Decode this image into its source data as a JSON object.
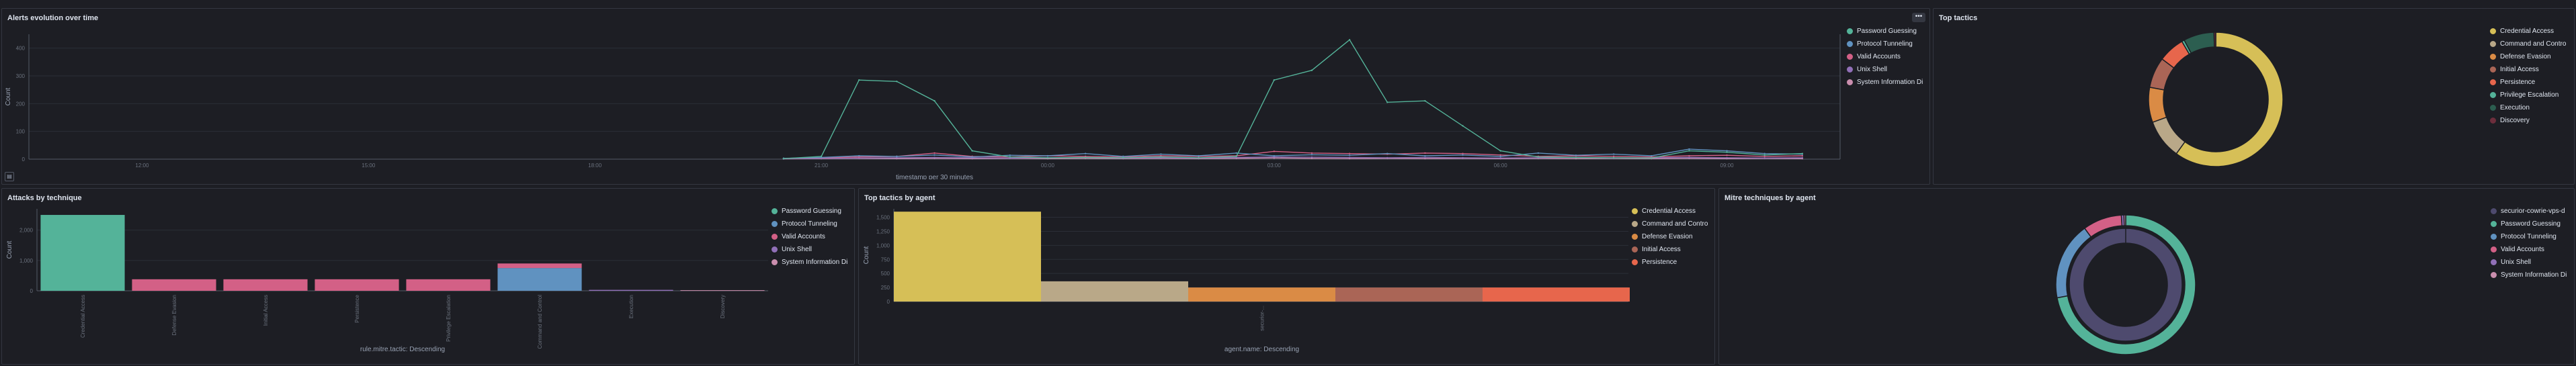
{
  "panels": {
    "alerts_evolution": {
      "title": "Alerts evolution over time",
      "menu_icon": "ellipsis-icon",
      "legend": [
        {
          "label": "Password Guessing",
          "color": "#54b399"
        },
        {
          "label": "Protocol Tunneling",
          "color": "#6092c0"
        },
        {
          "label": "Valid Accounts",
          "color": "#d36086"
        },
        {
          "label": "Unix Shell",
          "color": "#9170b8"
        },
        {
          "label": "System Information Di",
          "color": "#ca8eae"
        }
      ]
    },
    "top_tactics": {
      "title": "Top tactics",
      "legend": [
        {
          "label": "Credential Access",
          "color": "#d6bf57"
        },
        {
          "label": "Command and Contro",
          "color": "#b9a888"
        },
        {
          "label": "Defense Evasion",
          "color": "#da8b45"
        },
        {
          "label": "Initial Access",
          "color": "#aa6556"
        },
        {
          "label": "Persistence",
          "color": "#e7664c"
        },
        {
          "label": "Privilege Escalation",
          "color": "#54b399"
        },
        {
          "label": "Execution",
          "color": "#2c5e50"
        },
        {
          "label": "Discovery",
          "color": "#6d2e3c"
        }
      ]
    },
    "attacks_by_technique": {
      "title": "Attacks by technique",
      "legend": [
        {
          "label": "Password Guessing",
          "color": "#54b399"
        },
        {
          "label": "Protocol Tunneling",
          "color": "#6092c0"
        },
        {
          "label": "Valid Accounts",
          "color": "#d36086"
        },
        {
          "label": "Unix Shell",
          "color": "#9170b8"
        },
        {
          "label": "System Information Di",
          "color": "#ca8eae"
        }
      ]
    },
    "top_tactics_by_agent": {
      "title": "Top tactics by agent",
      "legend": [
        {
          "label": "Credential Access",
          "color": "#d6bf57"
        },
        {
          "label": "Command and Contro",
          "color": "#b9a888"
        },
        {
          "label": "Defense Evasion",
          "color": "#da8b45"
        },
        {
          "label": "Initial Access",
          "color": "#aa6556"
        },
        {
          "label": "Persistence",
          "color": "#e7664c"
        }
      ]
    },
    "mitre_techniques_by_agent": {
      "title": "Mitre techniques by agent",
      "legend": [
        {
          "label": "securior-cowrie-vps-d",
          "color": "#4e4a6e"
        },
        {
          "label": "Password Guessing",
          "color": "#54b399"
        },
        {
          "label": "Protocol Tunneling",
          "color": "#6092c0"
        },
        {
          "label": "Valid Accounts",
          "color": "#d36086"
        },
        {
          "label": "Unix Shell",
          "color": "#9170b8"
        },
        {
          "label": "System Information Di",
          "color": "#ca8eae"
        }
      ]
    }
  },
  "chart_data": [
    {
      "id": "alerts_evolution",
      "type": "line",
      "xlabel": "timestamp per 30 minutes",
      "ylabel": "Count",
      "y_ticks": [
        "0",
        "100",
        "200",
        "300",
        "400"
      ],
      "x_ticks": [
        "12:00",
        "15:00",
        "18:00",
        "21:00",
        "00:00",
        "03:00",
        "06:00",
        "09:00"
      ],
      "ylim": [
        0,
        450
      ],
      "x_range": [
        0,
        48
      ],
      "series": [
        {
          "name": "Password Guessing",
          "color": "#54b399",
          "points": [
            [
              20,
              2
            ],
            [
              21,
              10
            ],
            [
              22,
              285
            ],
            [
              23,
              280
            ],
            [
              24,
              210
            ],
            [
              25,
              30
            ],
            [
              26,
              8
            ],
            [
              27,
              5
            ],
            [
              28,
              6
            ],
            [
              29,
              5
            ],
            [
              30,
              8
            ],
            [
              31,
              5
            ],
            [
              32,
              10
            ],
            [
              33,
              285
            ],
            [
              34,
              320
            ],
            [
              35,
              430
            ],
            [
              36,
              205
            ],
            [
              37,
              210
            ],
            [
              38,
              120
            ],
            [
              39,
              30
            ],
            [
              40,
              8
            ],
            [
              41,
              6
            ],
            [
              42,
              5
            ],
            [
              43,
              4
            ],
            [
              44,
              30
            ],
            [
              45,
              25
            ],
            [
              46,
              15
            ],
            [
              47,
              20
            ]
          ]
        },
        {
          "name": "Protocol Tunneling",
          "color": "#6092c0",
          "points": [
            [
              20,
              3
            ],
            [
              21,
              6
            ],
            [
              22,
              12
            ],
            [
              23,
              10
            ],
            [
              24,
              15
            ],
            [
              25,
              8
            ],
            [
              26,
              14
            ],
            [
              27,
              12
            ],
            [
              28,
              20
            ],
            [
              29,
              10
            ],
            [
              30,
              18
            ],
            [
              31,
              12
            ],
            [
              32,
              22
            ],
            [
              33,
              12
            ],
            [
              34,
              16
            ],
            [
              35,
              14
            ],
            [
              36,
              20
            ],
            [
              37,
              12
            ],
            [
              38,
              15
            ],
            [
              39,
              10
            ],
            [
              40,
              22
            ],
            [
              41,
              14
            ],
            [
              42,
              18
            ],
            [
              43,
              12
            ],
            [
              44,
              36
            ],
            [
              45,
              30
            ],
            [
              46,
              20
            ],
            [
              47,
              18
            ]
          ]
        },
        {
          "name": "Valid Accounts",
          "color": "#d36086",
          "points": [
            [
              20,
              2
            ],
            [
              21,
              5
            ],
            [
              22,
              8
            ],
            [
              23,
              10
            ],
            [
              24,
              22
            ],
            [
              25,
              10
            ],
            [
              26,
              8
            ],
            [
              27,
              12
            ],
            [
              28,
              10
            ],
            [
              29,
              8
            ],
            [
              30,
              12
            ],
            [
              31,
              10
            ],
            [
              32,
              12
            ],
            [
              33,
              28
            ],
            [
              34,
              22
            ],
            [
              35,
              20
            ],
            [
              36,
              18
            ],
            [
              37,
              22
            ],
            [
              38,
              20
            ],
            [
              39,
              15
            ],
            [
              40,
              10
            ],
            [
              41,
              12
            ],
            [
              42,
              10
            ],
            [
              43,
              8
            ],
            [
              44,
              12
            ],
            [
              45,
              14
            ],
            [
              46,
              10
            ],
            [
              47,
              12
            ]
          ]
        },
        {
          "name": "Unix Shell",
          "color": "#9170b8",
          "points": [
            [
              20,
              1
            ],
            [
              21,
              3
            ],
            [
              22,
              4
            ],
            [
              23,
              5
            ],
            [
              24,
              6
            ],
            [
              25,
              5
            ],
            [
              26,
              4
            ],
            [
              27,
              5
            ],
            [
              28,
              6
            ],
            [
              29,
              4
            ],
            [
              30,
              5
            ],
            [
              31,
              4
            ],
            [
              32,
              6
            ],
            [
              33,
              8
            ],
            [
              34,
              7
            ],
            [
              35,
              6
            ],
            [
              36,
              5
            ],
            [
              37,
              6
            ],
            [
              38,
              5
            ],
            [
              39,
              4
            ],
            [
              40,
              5
            ],
            [
              41,
              6
            ],
            [
              42,
              4
            ],
            [
              43,
              5
            ],
            [
              44,
              6
            ],
            [
              45,
              5
            ],
            [
              46,
              4
            ],
            [
              47,
              5
            ]
          ]
        },
        {
          "name": "System Information Di",
          "color": "#ca8eae",
          "points": [
            [
              20,
              1
            ],
            [
              21,
              2
            ],
            [
              22,
              3
            ],
            [
              23,
              2
            ],
            [
              24,
              3
            ],
            [
              25,
              2
            ],
            [
              26,
              3
            ],
            [
              27,
              2
            ],
            [
              28,
              3
            ],
            [
              29,
              2
            ],
            [
              30,
              3
            ],
            [
              31,
              2
            ],
            [
              32,
              3
            ],
            [
              33,
              4
            ],
            [
              34,
              3
            ],
            [
              35,
              2
            ],
            [
              36,
              3
            ],
            [
              37,
              2
            ],
            [
              38,
              3
            ],
            [
              39,
              2
            ],
            [
              40,
              3
            ],
            [
              41,
              2
            ],
            [
              42,
              3
            ],
            [
              43,
              2
            ],
            [
              44,
              3
            ],
            [
              45,
              2
            ],
            [
              46,
              3
            ],
            [
              47,
              2
            ]
          ]
        }
      ]
    },
    {
      "id": "top_tactics",
      "type": "pie",
      "slices": [
        {
          "label": "Credential Access",
          "value": 57,
          "color": "#d6bf57"
        },
        {
          "label": "Command and Contro",
          "value": 9,
          "color": "#b9a888"
        },
        {
          "label": "Defense Evasion",
          "value": 8,
          "color": "#da8b45"
        },
        {
          "label": "Initial Access",
          "value": 7,
          "color": "#aa6556"
        },
        {
          "label": "Persistence",
          "value": 6,
          "color": "#e7664c"
        },
        {
          "label": "Privilege Escalation",
          "value": 0.6,
          "color": "#54b399"
        },
        {
          "label": "Execution",
          "value": 7,
          "color": "#2c5e50"
        },
        {
          "label": "Discovery",
          "value": 0.4,
          "color": "#6d2e3c"
        }
      ]
    },
    {
      "id": "attacks_by_technique",
      "type": "bar",
      "xlabel": "rule.mitre.tactic: Descending",
      "ylabel": "Count",
      "y_ticks": [
        "0",
        "1,000",
        "2,000"
      ],
      "ylim": [
        0,
        2700
      ],
      "categories": [
        "Credential Access",
        "Defense Evasion",
        "Initial Access",
        "Persistence",
        "Privilege Escalation",
        "Command and Control",
        "Execution",
        "Discovery"
      ],
      "series": [
        {
          "name": "Password Guessing",
          "color": "#54b399",
          "values": [
            2500,
            0,
            0,
            0,
            0,
            0,
            0,
            0
          ]
        },
        {
          "name": "Protocol Tunneling",
          "color": "#6092c0",
          "values": [
            0,
            0,
            0,
            0,
            0,
            750,
            0,
            0
          ]
        },
        {
          "name": "Valid Accounts",
          "color": "#d36086",
          "values": [
            0,
            380,
            380,
            380,
            380,
            150,
            0,
            0
          ]
        },
        {
          "name": "Unix Shell",
          "color": "#9170b8",
          "values": [
            0,
            0,
            0,
            0,
            0,
            0,
            30,
            0
          ]
        },
        {
          "name": "System Information Di",
          "color": "#ca8eae",
          "values": [
            0,
            0,
            0,
            0,
            0,
            0,
            0,
            20
          ]
        }
      ]
    },
    {
      "id": "top_tactics_by_agent",
      "type": "bar",
      "xlabel": "agent.name: Descending",
      "ylabel": "Count",
      "y_ticks": [
        "0",
        "250",
        "500",
        "750",
        "1,000",
        "1,250",
        "1,500"
      ],
      "ylim": [
        0,
        1650
      ],
      "categories": [
        "securior-..."
      ],
      "series": [
        {
          "name": "Credential Access",
          "color": "#d6bf57",
          "values": [
            1600
          ]
        },
        {
          "name": "Command and Contro",
          "color": "#b9a888",
          "values": [
            360
          ]
        },
        {
          "name": "Defense Evasion",
          "color": "#da8b45",
          "values": [
            250
          ]
        },
        {
          "name": "Initial Access",
          "color": "#aa6556",
          "values": [
            250
          ]
        },
        {
          "name": "Persistence",
          "color": "#e7664c",
          "values": [
            250
          ]
        }
      ]
    },
    {
      "id": "mitre_techniques_by_agent",
      "type": "pie",
      "inner": [
        {
          "label": "securior-cowrie-vps-d",
          "value": 100,
          "color": "#4e4a6e"
        }
      ],
      "outer": [
        {
          "label": "Password Guessing",
          "value": 72,
          "color": "#54b399"
        },
        {
          "label": "Protocol Tunneling",
          "value": 18,
          "color": "#6092c0"
        },
        {
          "label": "Valid Accounts",
          "value": 9,
          "color": "#d36086"
        },
        {
          "label": "Unix Shell",
          "value": 0.6,
          "color": "#9170b8"
        },
        {
          "label": "System Information Di",
          "value": 0.4,
          "color": "#ca8eae"
        }
      ]
    }
  ]
}
